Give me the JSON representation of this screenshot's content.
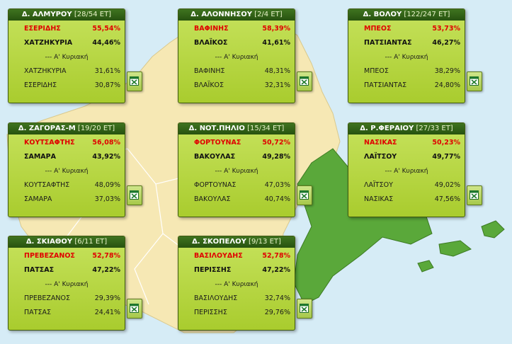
{
  "cards": [
    {
      "title": "Δ. ΑΛΜΥΡΟΥ",
      "count": "[28/54 ΕΤ]",
      "first_round": [
        {
          "name": "ΕΣΕΡΙΔΗΣ",
          "pct": "55,54%"
        },
        {
          "name": "ΧΑΤΖΗΚΥΡΙΑ",
          "pct": "44,46%"
        }
      ],
      "previous_label": "--- Α' Κυριακή",
      "previous": [
        {
          "name": "ΧΑΤΖΗΚΥΡΙΑ",
          "pct": "31,61%"
        },
        {
          "name": "ΕΣΕΡΙΔΗΣ",
          "pct": "30,87%"
        }
      ]
    },
    {
      "title": "Δ. ΑΛΟΝΝΗΣΟΥ",
      "count": "[2/4 ΕΤ]",
      "first_round": [
        {
          "name": "ΒΑΦΙΝΗΣ",
          "pct": "58,39%"
        },
        {
          "name": "ΒΛΑΪΚΟΣ",
          "pct": "41,61%"
        }
      ],
      "previous_label": "--- Α' Κυριακή",
      "previous": [
        {
          "name": "ΒΑΦΙΝΗΣ",
          "pct": "48,31%"
        },
        {
          "name": "ΒΛΑΪΚΟΣ",
          "pct": "32,31%"
        }
      ]
    },
    {
      "title": "Δ. ΒΟΛΟΥ",
      "count": "[122/247 ΕΤ]",
      "first_round": [
        {
          "name": "ΜΠΕΟΣ",
          "pct": "53,73%"
        },
        {
          "name": "ΠΑΤΣΙΑΝΤΑΣ",
          "pct": "46,27%"
        }
      ],
      "previous_label": "--- Α' Κυριακή",
      "previous": [
        {
          "name": "ΜΠΕΟΣ",
          "pct": "38,29%"
        },
        {
          "name": "ΠΑΤΣΙΑΝΤΑΣ",
          "pct": "24,80%"
        }
      ]
    },
    {
      "title": "Δ. ΖΑΓΟΡΑΣ-Μ",
      "count": "[19/20 ΕΤ]",
      "first_round": [
        {
          "name": "ΚΟΥΤΣΑΦΤΗΣ",
          "pct": "56,08%"
        },
        {
          "name": "ΣΑΜΑΡΑ",
          "pct": "43,92%"
        }
      ],
      "previous_label": "--- Α' Κυριακή",
      "previous": [
        {
          "name": "ΚΟΥΤΣΑΦΤΗΣ",
          "pct": "48,09%"
        },
        {
          "name": "ΣΑΜΑΡΑ",
          "pct": "37,03%"
        }
      ]
    },
    {
      "title": "Δ. ΝΟΤ.ΠΗΛΙΟ",
      "count": "[15/34 ΕΤ]",
      "first_round": [
        {
          "name": "ΦΟΡΤΟΥΝΑΣ",
          "pct": "50,72%"
        },
        {
          "name": "ΒΑΚΟΥΛΑΣ",
          "pct": "49,28%"
        }
      ],
      "previous_label": "--- Α' Κυριακή",
      "previous": [
        {
          "name": "ΦΟΡΤΟΥΝΑΣ",
          "pct": "47,03%"
        },
        {
          "name": "ΒΑΚΟΥΛΑΣ",
          "pct": "40,74%"
        }
      ]
    },
    {
      "title": "Δ. Ρ.ΦΕΡΑΙΟΥ",
      "count": "[27/33 ΕΤ]",
      "first_round": [
        {
          "name": "ΝΑΣΙΚΑΣ",
          "pct": "50,23%"
        },
        {
          "name": "ΛΑΪΤΣΟΥ",
          "pct": "49,77%"
        }
      ],
      "previous_label": "--- Α' Κυριακή",
      "previous": [
        {
          "name": "ΛΑΪΤΣΟΥ",
          "pct": "49,02%"
        },
        {
          "name": "ΝΑΣΙΚΑΣ",
          "pct": "47,56%"
        }
      ]
    },
    {
      "title": "Δ. ΣΚΙΑΘΟΥ",
      "count": "[6/11 ΕΤ]",
      "first_round": [
        {
          "name": "ΠΡΕΒΕΖΑΝΟΣ",
          "pct": "52,78%"
        },
        {
          "name": "ΠΑΤΣΑΣ",
          "pct": "47,22%"
        }
      ],
      "previous_label": "--- Α' Κυριακή",
      "previous": [
        {
          "name": "ΠΡΕΒΕΖΑΝΟΣ",
          "pct": "29,39%"
        },
        {
          "name": "ΠΑΤΣΑΣ",
          "pct": "24,41%"
        }
      ]
    },
    {
      "title": "Δ. ΣΚΟΠΕΛΟΥ",
      "count": "[9/13 ΕΤ]",
      "first_round": [
        {
          "name": "ΒΑΣΙΛΟΥΔΗΣ",
          "pct": "52,78%"
        },
        {
          "name": "ΠΕΡΙΣΣΗΣ",
          "pct": "47,22%"
        }
      ],
      "previous_label": "--- Α' Κυριακή",
      "previous": [
        {
          "name": "ΒΑΣΙΛΟΥΔΗΣ",
          "pct": "32,74%"
        },
        {
          "name": "ΠΕΡΙΣΣΗΣ",
          "pct": "29,76%"
        }
      ]
    }
  ],
  "colors": {
    "sea": "#d6ecf6",
    "land": "#f6e8b4",
    "highlight_region": "#5aa83a",
    "card": "#b6d63c",
    "header": "#2f5f16",
    "winner_text": "#e00000"
  },
  "icon": "excel-icon"
}
